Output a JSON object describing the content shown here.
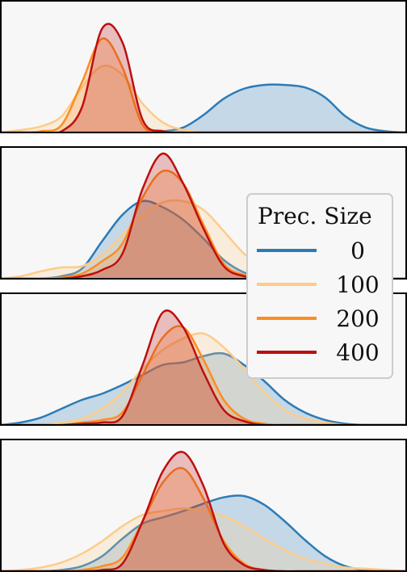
{
  "chart_data": {
    "type": "area",
    "description_level": "density",
    "legend": {
      "title": "Prec. Size",
      "placement": "right",
      "entries": [
        {
          "label": "0",
          "color": "#2c7bb6"
        },
        {
          "label": "100",
          "color": "#fdcc8a"
        },
        {
          "label": "200",
          "color": "#fc8d22"
        },
        {
          "label": "400",
          "color": "#bd0f0f"
        }
      ]
    },
    "grid": false,
    "x_grid": [
      0.0,
      0.05,
      0.1,
      0.15,
      0.2,
      0.25,
      0.3,
      0.35,
      0.4,
      0.45,
      0.5,
      0.55,
      0.6,
      0.65,
      0.7,
      0.75,
      0.8,
      0.85,
      0.9,
      0.95,
      1.0
    ],
    "ylim": [
      0,
      1
    ],
    "panels": [
      {
        "series": [
          {
            "name": "0",
            "values": [
              0,
              0,
              0,
              0,
              0,
              0,
              0,
              0,
              0.01,
              0.04,
              0.14,
              0.27,
              0.35,
              0.38,
              0.38,
              0.36,
              0.28,
              0.13,
              0.04,
              0.01,
              0
            ]
          },
          {
            "name": "100",
            "values": [
              0,
              0.02,
              0.05,
              0.13,
              0.36,
              0.53,
              0.46,
              0.23,
              0.08,
              0.02,
              0,
              0,
              0,
              0,
              0,
              0,
              0,
              0,
              0,
              0,
              0
            ]
          },
          {
            "name": "200",
            "values": [
              0,
              0,
              0.01,
              0.06,
              0.4,
              0.75,
              0.52,
              0.06,
              0.01,
              0,
              0,
              0,
              0,
              0,
              0,
              0,
              0,
              0,
              0,
              0,
              0
            ]
          },
          {
            "name": "400",
            "values": [
              0,
              0,
              0,
              0.01,
              0.2,
              0.83,
              0.72,
              0.1,
              0.01,
              0,
              0,
              0,
              0,
              0,
              0,
              0,
              0,
              0,
              0,
              0,
              0
            ]
          }
        ]
      },
      {
        "series": [
          {
            "name": "0",
            "values": [
              0,
              0,
              0,
              0.02,
              0.08,
              0.3,
              0.51,
              0.62,
              0.57,
              0.47,
              0.32,
              0.15,
              0.05,
              0.01,
              0,
              0,
              0,
              0,
              0,
              0,
              0
            ]
          },
          {
            "name": "100",
            "values": [
              0,
              0.02,
              0.06,
              0.09,
              0.1,
              0.19,
              0.35,
              0.51,
              0.61,
              0.62,
              0.55,
              0.38,
              0.2,
              0.08,
              0.02,
              0.01,
              0,
              0,
              0,
              0,
              0
            ]
          },
          {
            "name": "200",
            "values": [
              0,
              0,
              0,
              0.01,
              0.04,
              0.14,
              0.28,
              0.65,
              0.86,
              0.76,
              0.43,
              0.12,
              0.03,
              0.01,
              0,
              0,
              0,
              0,
              0,
              0,
              0
            ]
          },
          {
            "name": "400",
            "values": [
              0,
              0,
              0,
              0,
              0.02,
              0.07,
              0.2,
              0.72,
              1.0,
              0.76,
              0.4,
              0.1,
              0.02,
              0,
              0,
              0,
              0,
              0,
              0,
              0,
              0
            ]
          }
        ]
      },
      {
        "series": [
          {
            "name": "0",
            "values": [
              0,
              0.02,
              0.06,
              0.13,
              0.2,
              0.25,
              0.32,
              0.4,
              0.48,
              0.5,
              0.55,
              0.57,
              0.48,
              0.35,
              0.2,
              0.1,
              0.04,
              0.01,
              0,
              0,
              0
            ]
          },
          {
            "name": "100",
            "values": [
              0,
              0,
              0,
              0.02,
              0.05,
              0.13,
              0.26,
              0.45,
              0.6,
              0.69,
              0.73,
              0.62,
              0.45,
              0.26,
              0.12,
              0.05,
              0.02,
              0,
              0,
              0,
              0
            ]
          },
          {
            "name": "200",
            "values": [
              0,
              0,
              0,
              0,
              0.02,
              0.04,
              0.1,
              0.4,
              0.7,
              0.78,
              0.52,
              0.2,
              0.05,
              0.01,
              0,
              0,
              0,
              0,
              0,
              0,
              0
            ]
          },
          {
            "name": "400",
            "values": [
              0,
              0,
              0,
              0,
              0.01,
              0.02,
              0.07,
              0.48,
              0.9,
              0.78,
              0.42,
              0.12,
              0.03,
              0,
              0,
              0,
              0,
              0,
              0,
              0,
              0
            ]
          }
        ]
      },
      {
        "series": [
          {
            "name": "0",
            "values": [
              0,
              0,
              0,
              0.01,
              0.04,
              0.12,
              0.26,
              0.38,
              0.43,
              0.48,
              0.54,
              0.59,
              0.6,
              0.53,
              0.4,
              0.25,
              0.12,
              0.04,
              0.01,
              0,
              0
            ]
          },
          {
            "name": "100",
            "values": [
              0,
              0.01,
              0.03,
              0.07,
              0.14,
              0.24,
              0.36,
              0.45,
              0.48,
              0.5,
              0.48,
              0.44,
              0.36,
              0.26,
              0.17,
              0.1,
              0.06,
              0.03,
              0.02,
              0.01,
              0
            ]
          },
          {
            "name": "200",
            "values": [
              0,
              0,
              0,
              0,
              0.01,
              0.04,
              0.11,
              0.4,
              0.71,
              0.82,
              0.58,
              0.24,
              0.06,
              0.01,
              0,
              0,
              0,
              0,
              0,
              0,
              0
            ]
          },
          {
            "name": "400",
            "values": [
              0,
              0,
              0,
              0,
              0,
              0.01,
              0.06,
              0.4,
              0.8,
              0.95,
              0.68,
              0.22,
              0.05,
              0.01,
              0,
              0,
              0,
              0,
              0,
              0,
              0
            ]
          }
        ]
      }
    ]
  }
}
